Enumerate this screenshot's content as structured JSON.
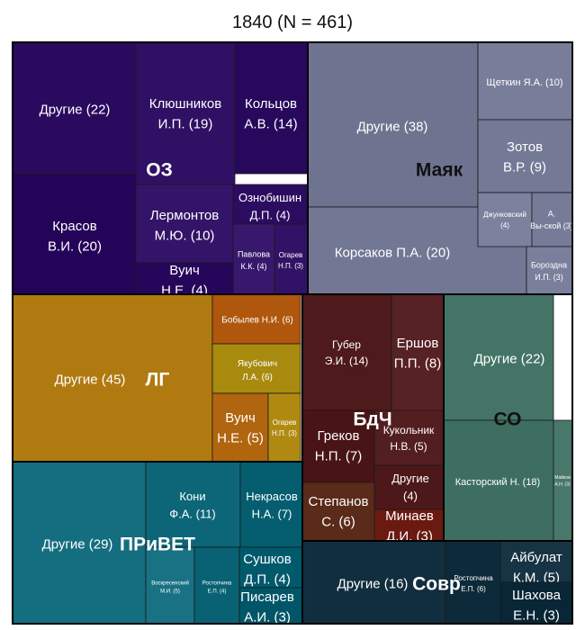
{
  "title": "1840 (N = 461)",
  "chart_data": {
    "type": "treemap",
    "title": "1840 (N = 461)",
    "groups": [
      {
        "name": "ОЗ",
        "color": "#2a0a5e",
        "items": [
          {
            "label": "Другие",
            "value": 22
          },
          {
            "label": "Красов В.И.",
            "value": 20
          },
          {
            "label": "Клюшников И.П.",
            "value": 19
          },
          {
            "label": "Кольцов А.В.",
            "value": 14
          },
          {
            "label": "Лермонтов М.Ю.",
            "value": 10
          },
          {
            "label": "Ознобишин Д.П.",
            "value": 4
          },
          {
            "label": "Павлова К.К.",
            "value": 4
          },
          {
            "label": "Огарев Н.П.",
            "value": 3
          },
          {
            "label": "Вуич Н.Е.",
            "value": 4
          }
        ]
      },
      {
        "name": "Маяк",
        "color": "#6e7390",
        "items": [
          {
            "label": "Другие",
            "value": 38
          },
          {
            "label": "Корсаков П.А.",
            "value": 20
          },
          {
            "label": "Щеткин Я.А.",
            "value": 10
          },
          {
            "label": "Зотов В.Р.",
            "value": 9
          },
          {
            "label": "Джунковский",
            "value": 4
          },
          {
            "label": "А. Вы-ской",
            "value": 3
          },
          {
            "label": "Бороздна И.П.",
            "value": 3
          }
        ]
      },
      {
        "name": "ЛГ",
        "color": "#b07a10",
        "items": [
          {
            "label": "Другие",
            "value": 45
          },
          {
            "label": "Бобылев Н.И.",
            "value": 6
          },
          {
            "label": "Якубович Л.А.",
            "value": 6
          },
          {
            "label": "Вуич Н.Е.",
            "value": 5
          },
          {
            "label": "Огарев Н.П.",
            "value": 3
          }
        ]
      },
      {
        "name": "БдЧ",
        "color": "#4f1a1c",
        "items": [
          {
            "label": "Губер Э.И.",
            "value": 14
          },
          {
            "label": "Ершов П.П.",
            "value": 8
          },
          {
            "label": "Греков Н.П.",
            "value": 7
          },
          {
            "label": "Кукольник Н.В.",
            "value": 5
          },
          {
            "label": "Другие",
            "value": 4
          },
          {
            "label": "Степанов С.",
            "value": 6
          },
          {
            "label": "Минаев Д.И.",
            "value": 3
          }
        ]
      },
      {
        "name": "СО",
        "color": "#3e6e60",
        "items": [
          {
            "label": "Другие",
            "value": 22
          },
          {
            "label": "Касторский Н.",
            "value": 18
          },
          {
            "label": "Майков А.Н.",
            "value": 3
          }
        ]
      },
      {
        "name": "ПРиВЕТ",
        "color": "#146e80",
        "items": [
          {
            "label": "Другие",
            "value": 29
          },
          {
            "label": "Кони Ф.А.",
            "value": 11
          },
          {
            "label": "Некрасов Н.А.",
            "value": 7
          },
          {
            "label": "Воскресенский М.И.",
            "value": 5
          },
          {
            "label": "Ростопчина Е.П.",
            "value": 4
          },
          {
            "label": "Сушков Д.П.",
            "value": 4
          },
          {
            "label": "Писарев А.И.",
            "value": 3
          }
        ]
      },
      {
        "name": "Совр",
        "color": "#0d2a3a",
        "items": [
          {
            "label": "Другие",
            "value": 16
          },
          {
            "label": "Ростопчина Е.П.",
            "value": 6
          },
          {
            "label": "Айбулат К.М.",
            "value": 5
          },
          {
            "label": "Шахова Е.Н.",
            "value": 3
          }
        ]
      }
    ]
  }
}
